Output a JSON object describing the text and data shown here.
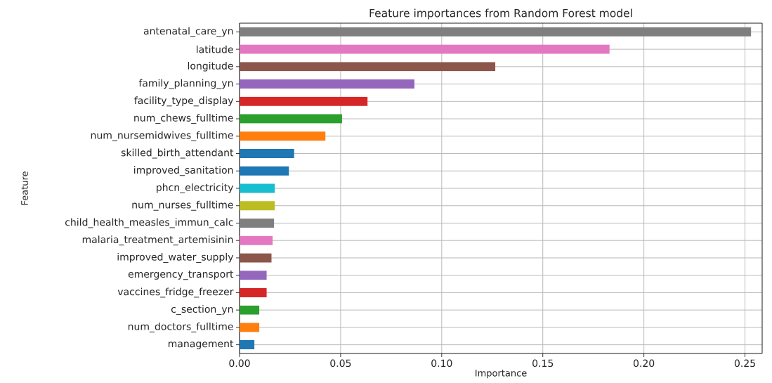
{
  "chart_data": {
    "type": "bar",
    "orientation": "horizontal",
    "title": "Feature importances from Random Forest model",
    "xlabel": "Importance",
    "ylabel": "Feature",
    "categories": [
      "antenatal_care_yn",
      "latitude",
      "longitude",
      "family_planning_yn",
      "facility_type_display",
      "num_chews_fulltime",
      "num_nursemidwives_fulltime",
      "skilled_birth_attendant",
      "improved_sanitation",
      "phcn_electricity",
      "num_nurses_fulltime",
      "child_health_measles_immun_calc",
      "malaria_treatment_artemisinin",
      "improved_water_supply",
      "emergency_transport",
      "vaccines_fridge_freezer",
      "c_section_yn",
      "num_doctors_fulltime",
      "management"
    ],
    "values": [
      0.253,
      0.183,
      0.1265,
      0.0865,
      0.0633,
      0.0507,
      0.0425,
      0.027,
      0.0245,
      0.0175,
      0.0175,
      0.0171,
      0.0164,
      0.0158,
      0.0134,
      0.0134,
      0.0098,
      0.0098,
      0.0074
    ],
    "colors": [
      "#7f7f7f",
      "#e377c2",
      "#8c564b",
      "#9467bd",
      "#d62728",
      "#2ca02c",
      "#ff7f0e",
      "#1f77b4",
      "#1f77b4",
      "#17becf",
      "#bcbd22",
      "#7f7f7f",
      "#e377c2",
      "#8c564b",
      "#9467bd",
      "#d62728",
      "#2ca02c",
      "#ff7f0e",
      "#1f77b4"
    ],
    "xlim": [
      0,
      0.2585
    ],
    "xticks": [
      {
        "value": 0,
        "label": "0.00"
      },
      0.05,
      {
        "value": 0.1,
        "label": "0.10"
      },
      0.15,
      {
        "value": 0.2,
        "label": "0.20"
      },
      0.25
    ],
    "grid": true
  }
}
